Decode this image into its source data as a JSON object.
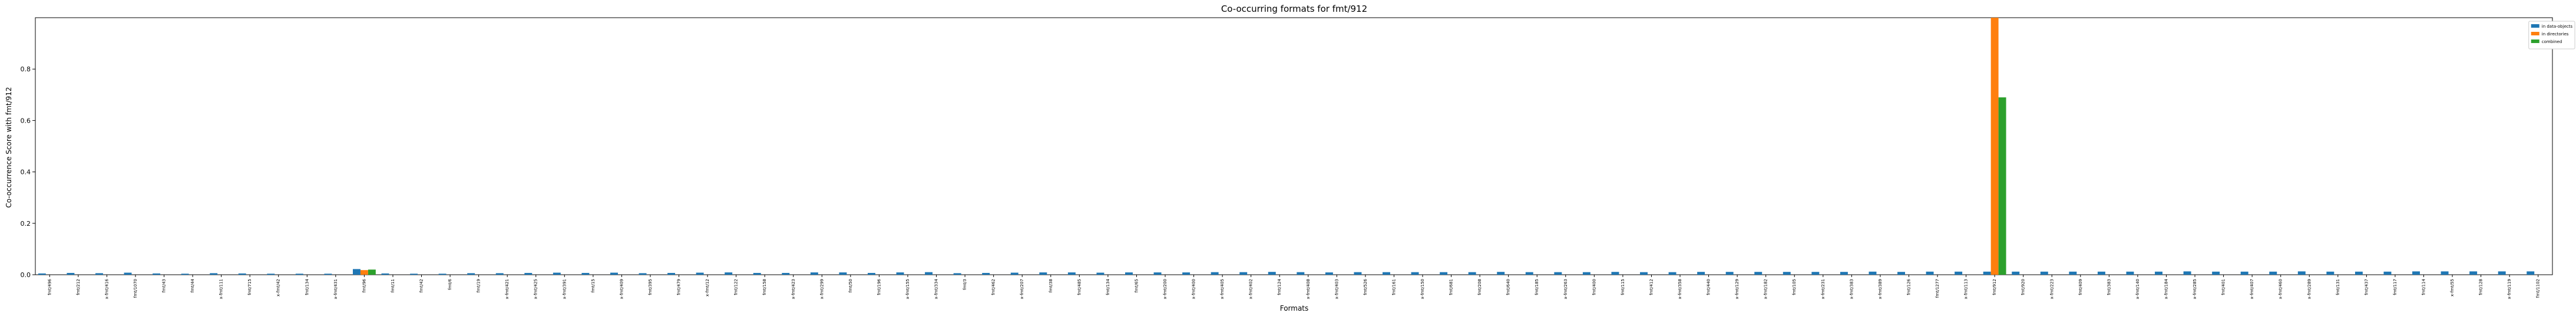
{
  "chart_data": {
    "type": "bar",
    "title": "Co-occurring formats for fmt/912",
    "xlabel": "Formats",
    "ylabel": "Co-occurrence Score with fmt/912",
    "ylim": [
      0,
      1.0
    ],
    "yticks": [
      "0.0",
      "0.2",
      "0.4",
      "0.6",
      "0.8"
    ],
    "legend_position": "upper-right-outside",
    "categories": [
      "fmt/496",
      "fmt/212",
      "x-fmt/416",
      "fmt/1070",
      "fmt/43",
      "fmt/44",
      "x-fmt/111",
      "fmt/715",
      "x-fmt/42",
      "fmt/134",
      "x-fmt/431",
      "fmt/96",
      "fmt/11",
      "fmt/42",
      "fmt/6",
      "fmt/19",
      "x-fmt/421",
      "x-fmt/425",
      "x-fmt/391",
      "fmt/15",
      "x-fmt/409",
      "fmt/395",
      "fmt/479",
      "x-fmt/12",
      "fmt/122",
      "fmt/158",
      "x-fmt/423",
      "x-fmt/299",
      "fmt/50",
      "fmt/196",
      "x-fmt/155",
      "x-fmt/334",
      "fmt/3",
      "fmt/462",
      "x-fmt/207",
      "fmt/38",
      "fmt/485",
      "fmt/134",
      "fmt/65",
      "x-fmt/200",
      "x-fmt/400",
      "x-fmt/405",
      "x-fmt/402",
      "fmt/124",
      "x-fmt/408",
      "x-fmt/403",
      "fmt/526",
      "fmt/161",
      "x-fmt/150",
      "fmt/681",
      "fmt/208",
      "fmt/640",
      "fmt/185",
      "x-fmt/263",
      "fmt/400",
      "fmt/115",
      "fmt/412",
      "x-fmt/358",
      "fmt/440",
      "x-fmt/129",
      "x-fmt/182",
      "fmt/105",
      "x-fmt/231",
      "x-fmt/383",
      "x-fmt/389",
      "fmt/126",
      "fmt/1277",
      "x-fmt/113",
      "fmt/912",
      "fmt/920",
      "x-fmt/223",
      "fmt/409",
      "fmt/383",
      "x-fmt/140",
      "x-fmt/184",
      "x-fmt/285",
      "fmt/401",
      "x-fmt/407",
      "x-fmt/460",
      "x-fmt/289",
      "fmt/131",
      "fmt/437",
      "fmt/117",
      "fmt/114",
      "x-fmt/55",
      "fmt/128",
      "x-fmt/119",
      "fmt/1102"
    ],
    "series": [
      {
        "name": "in data-objects",
        "color": "#1f77b4",
        "values": [
          0.005,
          0.007,
          0.006,
          0.008,
          0.005,
          0.004,
          0.006,
          0.005,
          0.004,
          0.004,
          0.004,
          0.022,
          0.005,
          0.004,
          0.004,
          0.006,
          0.006,
          0.007,
          0.008,
          0.007,
          0.008,
          0.006,
          0.007,
          0.008,
          0.009,
          0.007,
          0.007,
          0.009,
          0.009,
          0.007,
          0.009,
          0.01,
          0.006,
          0.007,
          0.008,
          0.009,
          0.009,
          0.008,
          0.009,
          0.009,
          0.009,
          0.01,
          0.01,
          0.011,
          0.01,
          0.009,
          0.01,
          0.01,
          0.01,
          0.01,
          0.01,
          0.011,
          0.01,
          0.01,
          0.01,
          0.011,
          0.01,
          0.01,
          0.011,
          0.011,
          0.011,
          0.011,
          0.011,
          0.011,
          0.012,
          0.011,
          0.012,
          0.012,
          0.012,
          0.012,
          0.012,
          0.012,
          0.012,
          0.012,
          0.012,
          0.013,
          0.012,
          0.012,
          0.012,
          0.013,
          0.012,
          0.012,
          0.012,
          0.013,
          0.013,
          0.013,
          0.013,
          0.013
        ]
      },
      {
        "name": "in directories",
        "color": "#ff7f0e",
        "values": [
          0,
          0,
          0,
          0,
          0,
          0,
          0,
          0,
          0,
          0,
          0,
          0.018,
          0,
          0,
          0,
          0,
          0,
          0,
          0,
          0,
          0,
          0,
          0,
          0,
          0,
          0,
          0,
          0,
          0,
          0,
          0,
          0,
          0,
          0,
          0,
          0,
          0,
          0,
          0,
          0,
          0,
          0,
          0,
          0,
          0,
          0,
          0,
          0,
          0,
          0,
          0,
          0,
          0,
          0,
          0,
          0,
          0,
          0,
          0,
          0,
          0,
          0,
          0,
          0,
          0,
          0,
          0,
          0,
          1.0,
          0,
          0,
          0,
          0,
          0,
          0,
          0,
          0,
          0,
          0,
          0,
          0,
          0,
          0,
          0,
          0,
          0,
          0,
          0
        ]
      },
      {
        "name": "combined",
        "color": "#2ca02c",
        "values": [
          0,
          0,
          0,
          0,
          0,
          0,
          0,
          0,
          0,
          0,
          0,
          0.02,
          0,
          0,
          0,
          0,
          0,
          0,
          0,
          0,
          0,
          0,
          0,
          0,
          0,
          0,
          0,
          0,
          0,
          0,
          0,
          0,
          0,
          0,
          0,
          0,
          0,
          0,
          0,
          0,
          0,
          0,
          0,
          0,
          0,
          0,
          0,
          0,
          0,
          0,
          0,
          0,
          0,
          0,
          0,
          0,
          0,
          0,
          0,
          0,
          0,
          0,
          0,
          0,
          0,
          0,
          0,
          0,
          0.69,
          0,
          0,
          0,
          0,
          0,
          0,
          0,
          0,
          0,
          0,
          0,
          0,
          0,
          0,
          0,
          0,
          0,
          0,
          0
        ]
      }
    ]
  }
}
